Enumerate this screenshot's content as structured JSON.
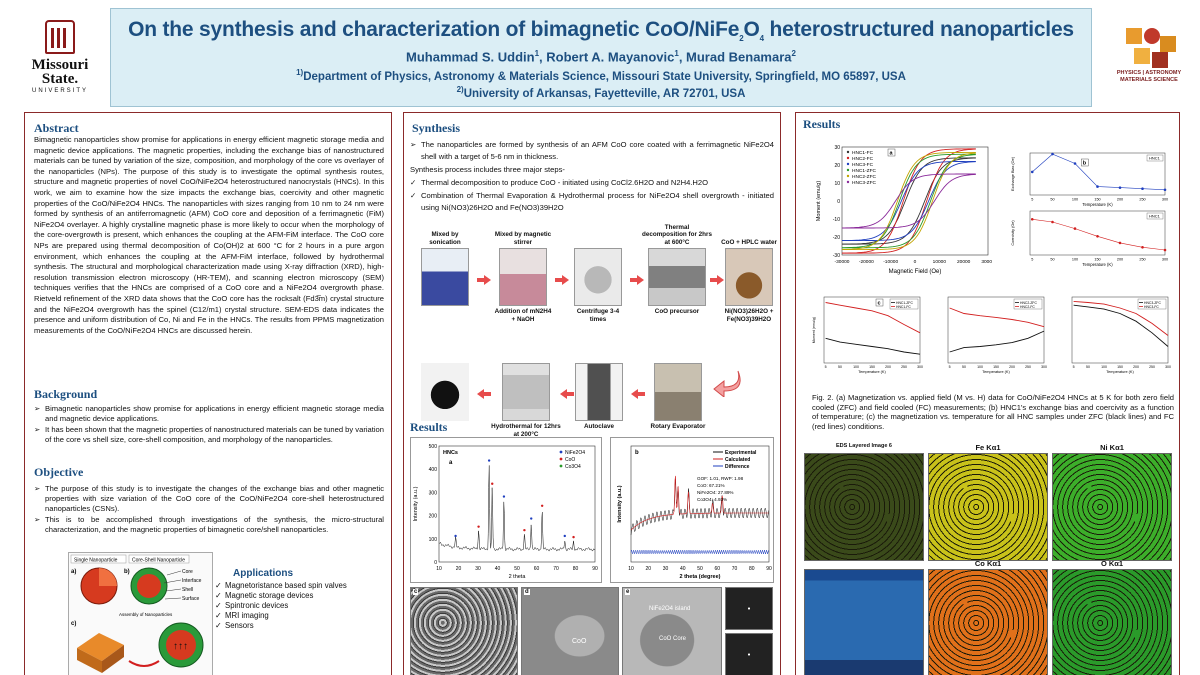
{
  "header": {
    "title_pre": "On the synthesis and characterization of bimagnetic CoO/NiFe",
    "title_sub1": "2",
    "title_mid": "O",
    "title_sub2": "4",
    "title_post": " heterostructured nanoparticles",
    "author1": "Muhammad S. Uddin",
    "author1_sup": "1",
    "author2": ", Robert A. Mayanovic",
    "author2_sup": "1",
    "author3": ", Murad Benamara",
    "author3_sup": "2",
    "affil1_sup": "1)",
    "affil1": "Department of Physics, Astronomy & Materials Science, Missouri State University, Springfield, MO 65897, USA",
    "affil2_sup": "2)",
    "affil2": "University of Arkansas, Fayetteville, AR 72701, USA"
  },
  "logos": {
    "left_name1": "Missouri",
    "left_name2": "State.",
    "left_sub": "UNIVERSITY",
    "right_text1": "PHYSICS | ASTRONOMY",
    "right_text2": "MATERIALS SCIENCE"
  },
  "abstract": {
    "heading": "Abstract",
    "text": "Bimagnetic nanoparticles show promise for applications in energy efficient magnetic storage media and magnetic device applications. The magnetic properties, including the exchange bias of nanostructured materials can be tuned by variation of the size, composition, and morphology of the core vs overlayer of the nanoparticles (NPs). The purpose of this study is to investigate the optimal synthesis routes, structure and magnetic properties of novel CoO/NiFe2O4 heterostructured nanocrystals (HNCs). In this work, we aim to examine how the size impacts the exchange bias, coercivity and other magnetic properties of the CoO/NiFe2O4 HNCs. The nanoparticles with sizes ranging from 10 nm to 24 nm were formed by synthesis of an antiferromagnetic (AFM) CoO core and deposition of a ferrimagnetic (FiM) NiFe2O4 overlayer. A highly crystalline magnetic phase is more likely to occur when the morphology of the core-overgrowth is present, which enhances the coupling at the AFM-FiM interface. The CoO core NPs are prepared using thermal decomposition of Co(OH)2 at 600 °C for 2 hours in a pure argon environment, which enhances the coupling at the AFM-FiM interface, followed by hydrothermal synthesis. The structural and morphological characterization made using X-ray diffraction (XRD), high-resolution transmission electron microscopy (HR-TEM), and scanning electron microscopy (SEM) techniques verifies that the HNCs are comprised of a CoO core and a NiFe2O4 overgrowth phase. Rietveld refinement of the XRD data shows that the CoO core has the rocksalt (Fd3̅m) crystal structure and the NiFe2O4 overgrowth has the spinel (C12/m1) crystal structure. SEM-EDS data indicates the presence and uniform distribution of Co, Ni and Fe in the HNCs. The results from PPMS magnetization measurements of the CoO/NiFe2O4 HNCs are discussed herein."
  },
  "background": {
    "heading": "Background",
    "items": [
      "Bimagnetic nanoparticles show promise for applications in energy efficient magnetic storage media and magnetic device applications.",
      "It has been shown that the magnetic properties of nanostructured materials can be tuned by variation of the core vs shell size, core-shell composition, and morphology of the nanoparticles."
    ]
  },
  "objective": {
    "heading": "Objective",
    "items": [
      "The purpose of this study is to investigate the changes of the exchange bias and other magnetic properties with size variation of the CoO core of the CoO/NiFe2O4 core-shell heterostructured nanoparticles (CSNs).",
      "This is to be accomplished through investigations of the synthesis, the micro-structural characterization, and the magnetic properties of bimagnetic core/shell nanoparticles."
    ]
  },
  "diagram": {
    "single_label": "Single Nanoparticle",
    "coreshell_label": "Core-Shell Nanoparticle",
    "core": "Core",
    "interface": "Interface",
    "shell": "Shell",
    "surface": "Surface",
    "assembly": "Assembly of Nanoparticles",
    "panel_a": "a)",
    "panel_b": "b)",
    "panel_c": "c)"
  },
  "applications": {
    "heading": "Applications",
    "items": [
      "Magnetoristance based spin valves",
      "Magnetic storage devices",
      "Spintronic devices",
      "MRI imaging",
      "Sensors"
    ]
  },
  "synthesis": {
    "heading": "Synthesis",
    "item1": "The nanoparticles are formed by synthesis of an AFM CoO core coated with a ferrimagnetic NiFe2O4 shell with a target of 5-6 nm in thickness.",
    "steps_intro": "Synthesis process includes three major steps-",
    "item2": "Thermal decomposition to produce CoO - initiated using CoCl2.6H2O and N2H4.H2O",
    "item3": "Combination of Thermal Evaporation & Hydrothermal process for NiFe2O4 shell overgrowth - initiated using Ni(NO3)26H2O and Fe(NO3)39H2O"
  },
  "flow": {
    "top": [
      {
        "cap": "Mixed by sonication",
        "bottom": ""
      },
      {
        "cap": "Mixed by magnetic stirrer",
        "bottom": "Addition of mN2H4 + NaOH"
      },
      {
        "cap": "",
        "bottom": "Centrifuge 3-4 times"
      },
      {
        "cap": "Thermal decomposition for 2hrs at 600°C",
        "bottom": "CoO precursor"
      },
      {
        "cap": "CoO + HPLC water",
        "bottom": "Ni(NO3)26H2O + Fe(NO3)39H2O"
      }
    ],
    "bottom": [
      {
        "cap": "",
        "bottom": ""
      },
      {
        "cap": "",
        "bottom": "Hydrothermal for 12hrs at 200°C"
      },
      {
        "cap": "",
        "bottom": "Autoclave"
      },
      {
        "cap": "",
        "bottom": "Rotary Evaporator"
      }
    ]
  },
  "results_mid": {
    "heading": "Results",
    "panel_c": "c",
    "panel_d": "d",
    "panel_e": "e",
    "tem_d_label": "CoO",
    "tem_e_label1": "NiFe2O4 island",
    "tem_e_label2": "CoO Core"
  },
  "results_right": {
    "heading": "Results",
    "caption": "Fig. 2. (a) Magnetization vs. applied field (M vs. H) data for CoO/NiFe2O4 HNCs at 5 K for both zero field cooled (ZFC) and field cooled (FC) measurements; (b) HNC1's exchange bias and coercivity as a function of temperature; (c) the magnetization vs. temperature for all HNC samples under ZFC (black lines) and FC (red lines) conditions.",
    "maps": [
      {
        "label": "EDS Layered Image 6",
        "color": "#3a4a1a"
      },
      {
        "label": "Fe Kα1",
        "color": "#c9c21a"
      },
      {
        "label": "Ni Kα1",
        "color": "#3cae2a"
      },
      {
        "label": "",
        "color": "#2a6ab0"
      },
      {
        "label": "Co Kα1",
        "color": "#e0701a"
      },
      {
        "label": "O Kα1",
        "color": "#2a9a2a"
      }
    ]
  },
  "chart_data": [
    {
      "type": "line",
      "id": "xrd-a",
      "panel": "a",
      "title": "HNCs",
      "xlabel": "2 theta",
      "ylabel": "Intensity (a.u.)",
      "xlim": [
        10,
        90
      ],
      "ylim": [
        0,
        500
      ],
      "xticks": [
        10,
        20,
        30,
        40,
        50,
        60,
        70,
        80,
        90
      ],
      "yticks": [
        0,
        100,
        200,
        300,
        400,
        500
      ],
      "legend": [
        "NiFe2O4",
        "CoO",
        "Co3O4"
      ],
      "legend_colors": [
        "#1f3fbf",
        "#d21f1f",
        "#2a9a2a"
      ],
      "peaks": [
        {
          "x": 18.5,
          "y": 95
        },
        {
          "x": 30.3,
          "y": 135
        },
        {
          "x": 35.7,
          "y": 420
        },
        {
          "x": 37.3,
          "y": 320
        },
        {
          "x": 43.3,
          "y": 265
        },
        {
          "x": 53.8,
          "y": 120
        },
        {
          "x": 57.3,
          "y": 170
        },
        {
          "x": 62.9,
          "y": 225
        },
        {
          "x": 74.5,
          "y": 95
        },
        {
          "x": 79.0,
          "y": 90
        }
      ]
    },
    {
      "type": "line",
      "id": "xrd-b",
      "panel": "b",
      "xlabel": "2 theta (degree)",
      "ylabel": "Intensity (a.u.)",
      "xlim": [
        10,
        90
      ],
      "xticks": [
        10,
        20,
        30,
        40,
        50,
        60,
        70,
        80,
        90
      ],
      "legend": [
        "Experimental",
        "Calculated",
        "Difference"
      ],
      "legend_colors": [
        "#111111",
        "#d21f1f",
        "#1f3fbf"
      ],
      "annotations": [
        "GOF: 1.01, RWP: 1.98",
        "CoO: 67.21%",
        "NiFe2O4: 27.89%",
        "Co3O4: 4.93%"
      ]
    },
    {
      "type": "line",
      "id": "mh",
      "panel": "a",
      "xlabel": "Magnetic Field (Oe)",
      "ylabel": "Moment (emu/g)",
      "xlim": [
        -30000,
        30000
      ],
      "ylim": [
        -30,
        30
      ],
      "xticks": [
        -30000,
        -20000,
        -10000,
        0,
        10000,
        20000,
        30000
      ],
      "yticks": [
        -30,
        -20,
        -10,
        0,
        10,
        20,
        30
      ],
      "series": [
        {
          "name": "HNC1-FC",
          "color": "#333333",
          "ms": 24
        },
        {
          "name": "HNC2-FC",
          "color": "#d21f1f",
          "ms": 29
        },
        {
          "name": "HNC3-FC",
          "color": "#1f3fbf",
          "ms": 22
        },
        {
          "name": "HNC1-ZFC",
          "color": "#2a9a2a",
          "ms": 26
        },
        {
          "name": "HNC2-ZFC",
          "color": "#c2a400",
          "ms": 27
        },
        {
          "name": "HNC3-ZFC",
          "color": "#8a2a9a",
          "ms": 15
        }
      ]
    },
    {
      "type": "line",
      "id": "exchange-bias",
      "panel": "b",
      "xlabel": "Temperature (K)",
      "ylabel": "Exchange Bias (Oe)",
      "legend": [
        "HNC1"
      ],
      "x": [
        5,
        50,
        100,
        150,
        200,
        250,
        300
      ],
      "values": [
        110,
        195,
        150,
        40,
        35,
        30,
        25
      ],
      "ylim": [
        0,
        200
      ]
    },
    {
      "type": "line",
      "id": "coercivity",
      "xlabel": "Temperature (K)",
      "ylabel": "Coercivity (Oe)",
      "legend": [
        "HNC1"
      ],
      "x": [
        5,
        50,
        100,
        150,
        200,
        250,
        300
      ],
      "values": [
        6500,
        6000,
        4800,
        3400,
        2200,
        1400,
        900
      ],
      "ylim": [
        0,
        8000
      ]
    },
    {
      "type": "line",
      "id": "mt-1",
      "panel": "c",
      "xlabel": "Temperature (K)",
      "ylabel": "Moment (emu/g)",
      "legend": [
        "HNC1-ZFC",
        "HNC1-FC"
      ],
      "x": [
        5,
        50,
        100,
        150,
        200,
        250,
        300
      ],
      "zfc": [
        0.45,
        0.38,
        0.34,
        0.3,
        0.26,
        0.2,
        0.16
      ],
      "fc": [
        1.1,
        1.05,
        1.0,
        0.95,
        0.86,
        0.7,
        0.55
      ]
    },
    {
      "type": "line",
      "id": "mt-2",
      "xlabel": "Temperature (K)",
      "legend": [
        "HNC2-ZFC",
        "HNC2-FC"
      ],
      "x": [
        5,
        50,
        100,
        150,
        200,
        250,
        300
      ],
      "zfc": [
        0.2,
        0.28,
        0.3,
        0.33,
        0.37,
        0.45,
        0.58
      ],
      "fc": [
        1.0,
        0.9,
        0.86,
        0.83,
        0.79,
        0.74,
        0.66
      ]
    },
    {
      "type": "line",
      "id": "mt-3",
      "xlabel": "Temperature (K)",
      "legend": [
        "HNC3-ZFC",
        "HNC3-FC"
      ],
      "x": [
        5,
        50,
        100,
        150,
        200,
        250,
        300
      ],
      "zfc": [
        1.05,
        1.02,
        0.98,
        0.9,
        0.76,
        0.55,
        0.3
      ],
      "fc": [
        1.12,
        1.1,
        1.07,
        1.0,
        0.9,
        0.72,
        0.5
      ]
    }
  ]
}
